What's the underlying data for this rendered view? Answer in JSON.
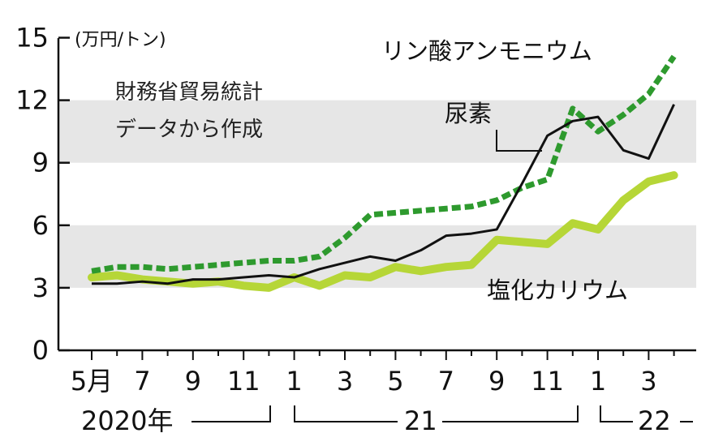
{
  "chart_data": {
    "type": "line",
    "unit": "(万円/トン)",
    "note_lines": [
      "財務省貿易統計",
      "データから作成"
    ],
    "ylim": [
      0,
      15
    ],
    "yticks": [
      0,
      3,
      6,
      9,
      12,
      15
    ],
    "bands": [
      [
        3,
        6
      ],
      [
        9,
        12
      ]
    ],
    "x_tick_labels": [
      "5月",
      "7",
      "9",
      "11",
      "1",
      "3",
      "5",
      "7",
      "9",
      "11",
      "1",
      "3"
    ],
    "x_tick_index": [
      0,
      2,
      4,
      6,
      8,
      10,
      12,
      14,
      16,
      18,
      20,
      22
    ],
    "year_labels": [
      "2020年",
      "21",
      "22"
    ],
    "months": [
      "2020-05",
      "2020-06",
      "2020-07",
      "2020-08",
      "2020-09",
      "2020-10",
      "2020-11",
      "2020-12",
      "2021-01",
      "2021-02",
      "2021-03",
      "2021-04",
      "2021-05",
      "2021-06",
      "2021-07",
      "2021-08",
      "2021-09",
      "2021-10",
      "2021-11",
      "2021-12",
      "2022-01",
      "2022-02",
      "2022-03",
      "2022-04"
    ],
    "series": [
      {
        "name": "リン酸アンモニウム",
        "color": "#2e9a2e",
        "style": "dashed",
        "values": [
          3.8,
          4.0,
          4.0,
          3.9,
          4.0,
          4.1,
          4.2,
          4.3,
          4.3,
          4.5,
          5.4,
          6.5,
          6.6,
          6.7,
          6.8,
          6.9,
          7.2,
          7.8,
          8.2,
          11.6,
          10.5,
          11.3,
          12.3,
          14.1
        ]
      },
      {
        "name": "尿素",
        "color": "#111111",
        "style": "solid",
        "values": [
          3.2,
          3.2,
          3.3,
          3.2,
          3.4,
          3.4,
          3.5,
          3.6,
          3.5,
          3.9,
          4.2,
          4.5,
          4.3,
          4.8,
          5.5,
          5.6,
          5.8,
          8.0,
          10.3,
          11.0,
          11.2,
          9.6,
          9.2,
          11.8
        ]
      },
      {
        "name": "塩化カリウム",
        "color": "#b6d637",
        "style": "solid",
        "values": [
          3.5,
          3.6,
          3.4,
          3.3,
          3.2,
          3.3,
          3.1,
          3.0,
          3.5,
          3.1,
          3.6,
          3.5,
          4.0,
          3.8,
          4.0,
          4.1,
          5.3,
          5.2,
          5.1,
          6.1,
          5.8,
          7.2,
          8.1,
          8.4
        ]
      }
    ]
  }
}
